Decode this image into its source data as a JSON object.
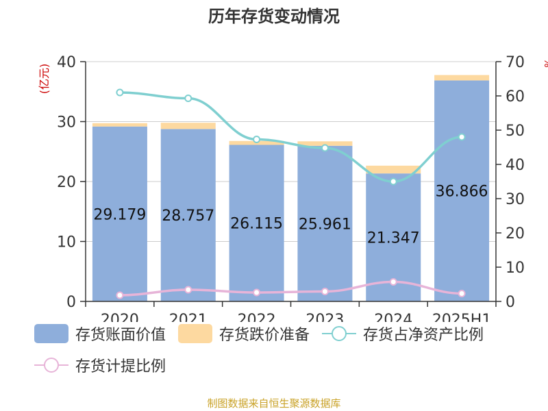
{
  "chart_data": {
    "type": "bar",
    "title": "历年存货变动情况",
    "categories": [
      "2020",
      "2021",
      "2022",
      "2023",
      "2024",
      "2025H1"
    ],
    "left_axis": {
      "label": "(亿元)",
      "ylim": [
        0,
        40
      ],
      "ticks": [
        0,
        10,
        20,
        30,
        40
      ]
    },
    "right_axis": {
      "label": "%",
      "ylim": [
        0,
        70
      ],
      "ticks": [
        0,
        10,
        20,
        30,
        40,
        50,
        60,
        70
      ]
    },
    "series": [
      {
        "name": "存货账面价值",
        "kind": "bar-stack",
        "axis": "left",
        "color": "#8eaedb",
        "values": [
          29.179,
          28.757,
          26.115,
          25.961,
          21.347,
          36.866
        ],
        "labels": [
          "29.179",
          "28.757",
          "26.115",
          "25.961",
          "21.347",
          "36.866"
        ]
      },
      {
        "name": "存货跌价准备",
        "kind": "bar-stack",
        "axis": "left",
        "color": "#fdd9a0",
        "values": [
          0.55,
          1.05,
          0.65,
          0.75,
          1.3,
          0.9
        ]
      },
      {
        "name": "存货占净资产比例",
        "kind": "line",
        "axis": "right",
        "color": "#7fcfd0",
        "values": [
          61.0,
          59.3,
          47.3,
          44.8,
          35.0,
          48.0
        ]
      },
      {
        "name": "存货计提比例",
        "kind": "line",
        "axis": "right",
        "color": "#e7b4d8",
        "values": [
          1.8,
          3.4,
          2.6,
          2.9,
          5.7,
          2.3
        ]
      }
    ],
    "grid": true,
    "legend_position": "bottom"
  },
  "footer": {
    "source": "制图数据来自恒生聚源数据库"
  }
}
